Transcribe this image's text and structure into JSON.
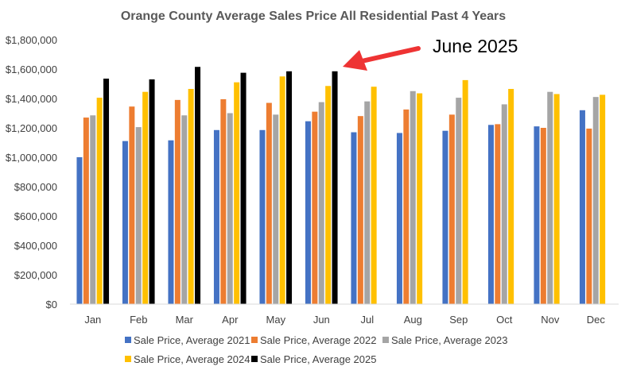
{
  "chart_data": {
    "type": "bar",
    "title": "Orange County Average Sales Price All Residential Past 4 Years",
    "xlabel": "",
    "ylabel": "",
    "ylim": [
      0,
      1800000
    ],
    "yticks": [
      0,
      200000,
      400000,
      600000,
      800000,
      1000000,
      1200000,
      1400000,
      1600000,
      1800000
    ],
    "ytick_labels": [
      "$0",
      "$200,000",
      "$400,000",
      "$600,000",
      "$800,000",
      "$1,000,000",
      "$1,200,000",
      "$1,400,000",
      "$1,600,000",
      "$1,800,000"
    ],
    "categories": [
      "Jan",
      "Feb",
      "Mar",
      "Apr",
      "May",
      "Jun",
      "Jul",
      "Aug",
      "Sep",
      "Oct",
      "Nov",
      "Dec"
    ],
    "series": [
      {
        "name": "Sale Price, Average 2021",
        "color": "#4472C4",
        "values": [
          1000000,
          1110000,
          1115000,
          1185000,
          1185000,
          1245000,
          1170000,
          1165000,
          1180000,
          1220000,
          1210000,
          1320000
        ]
      },
      {
        "name": "Sale Price, Average 2022",
        "color": "#ED7D31",
        "values": [
          1270000,
          1345000,
          1390000,
          1395000,
          1370000,
          1310000,
          1280000,
          1325000,
          1290000,
          1225000,
          1200000,
          1195000
        ]
      },
      {
        "name": "Sale Price, Average 2023",
        "color": "#A5A5A5",
        "values": [
          1285000,
          1205000,
          1285000,
          1300000,
          1290000,
          1375000,
          1380000,
          1450000,
          1405000,
          1360000,
          1445000,
          1410000
        ]
      },
      {
        "name": "Sale Price, Average 2024",
        "color": "#FFC000",
        "values": [
          1405000,
          1445000,
          1465000,
          1510000,
          1550000,
          1485000,
          1480000,
          1435000,
          1525000,
          1465000,
          1430000,
          1425000
        ]
      },
      {
        "name": "Sale Price, Average 2025",
        "color": "#000000",
        "values": [
          1535000,
          1530000,
          1615000,
          1575000,
          1585000,
          1585000,
          null,
          null,
          null,
          null,
          null,
          null
        ]
      }
    ],
    "grid": false,
    "legend_position": "bottom",
    "annotation": {
      "text": "June 2025",
      "arrow_color": "#EE3333",
      "target_category": "Jun"
    }
  }
}
